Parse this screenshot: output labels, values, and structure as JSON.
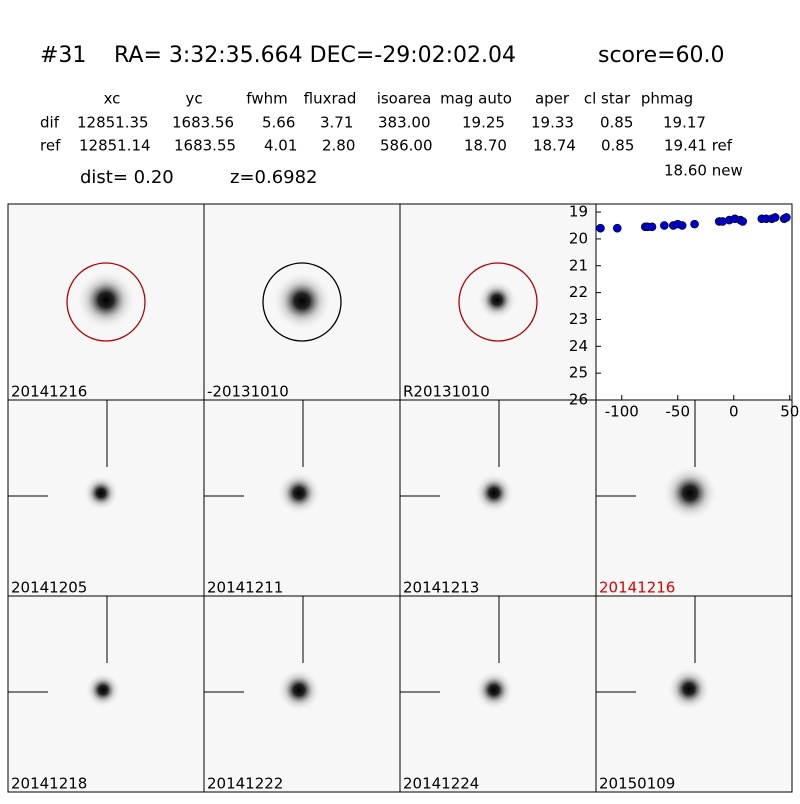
{
  "header": {
    "id": "#31",
    "coords": "RA= 3:32:35.664 DEC=-29:02:02.04",
    "score": "score=60.0"
  },
  "table": {
    "columns": [
      "xc",
      "yc",
      "fwhm",
      "fluxrad",
      "isoarea",
      "mag auto",
      "aper",
      "cl star",
      "phmag"
    ],
    "rows": [
      [
        "dif",
        "12851.35",
        "1683.56",
        "5.66",
        "3.71",
        "383.00",
        "19.25",
        "19.33",
        "0.85",
        "19.17"
      ],
      [
        "ref",
        "12851.14",
        "1683.55",
        "4.01",
        "2.80",
        "586.00",
        "18.70",
        "18.74",
        "0.85",
        "19.41 ref"
      ]
    ],
    "extra": "18.60 new",
    "dist": "dist=  0.20",
    "z": "z=0.6982"
  },
  "panels": [
    {
      "label": "20141216",
      "circle_color": "#b00000"
    },
    {
      "label": "-20131010",
      "circle_color": "#000000"
    },
    {
      "label": "R20131010",
      "circle_color": "#b00000"
    },
    {
      "label": "20141205"
    },
    {
      "label": "20141211"
    },
    {
      "label": "20141213"
    },
    {
      "label": "20141216",
      "label_color": "#e00000"
    },
    {
      "label": "20141218"
    },
    {
      "label": "20141222"
    },
    {
      "label": "20141224"
    },
    {
      "label": "20150109"
    }
  ],
  "chart_data": {
    "type": "scatter",
    "color": "#0000cc",
    "x": [
      -119,
      -104,
      -79,
      -77,
      -73,
      -62,
      -54,
      -50,
      -46,
      -35,
      -13,
      -10,
      -4,
      1,
      6,
      8,
      25,
      29,
      34,
      37,
      45,
      47
    ],
    "values": [
      19.6,
      19.6,
      19.55,
      19.55,
      19.55,
      19.5,
      19.5,
      19.45,
      19.5,
      19.45,
      19.35,
      19.35,
      19.3,
      19.25,
      19.3,
      19.35,
      19.25,
      19.25,
      19.25,
      19.2,
      19.25,
      19.2
    ],
    "xlim": [
      -123,
      52
    ],
    "ylim": [
      18.7,
      26
    ],
    "y_inverted": true,
    "xticks": [
      -100,
      -50,
      0,
      50
    ],
    "yticks": [
      19,
      20,
      21,
      22,
      23,
      24,
      25,
      26
    ]
  }
}
